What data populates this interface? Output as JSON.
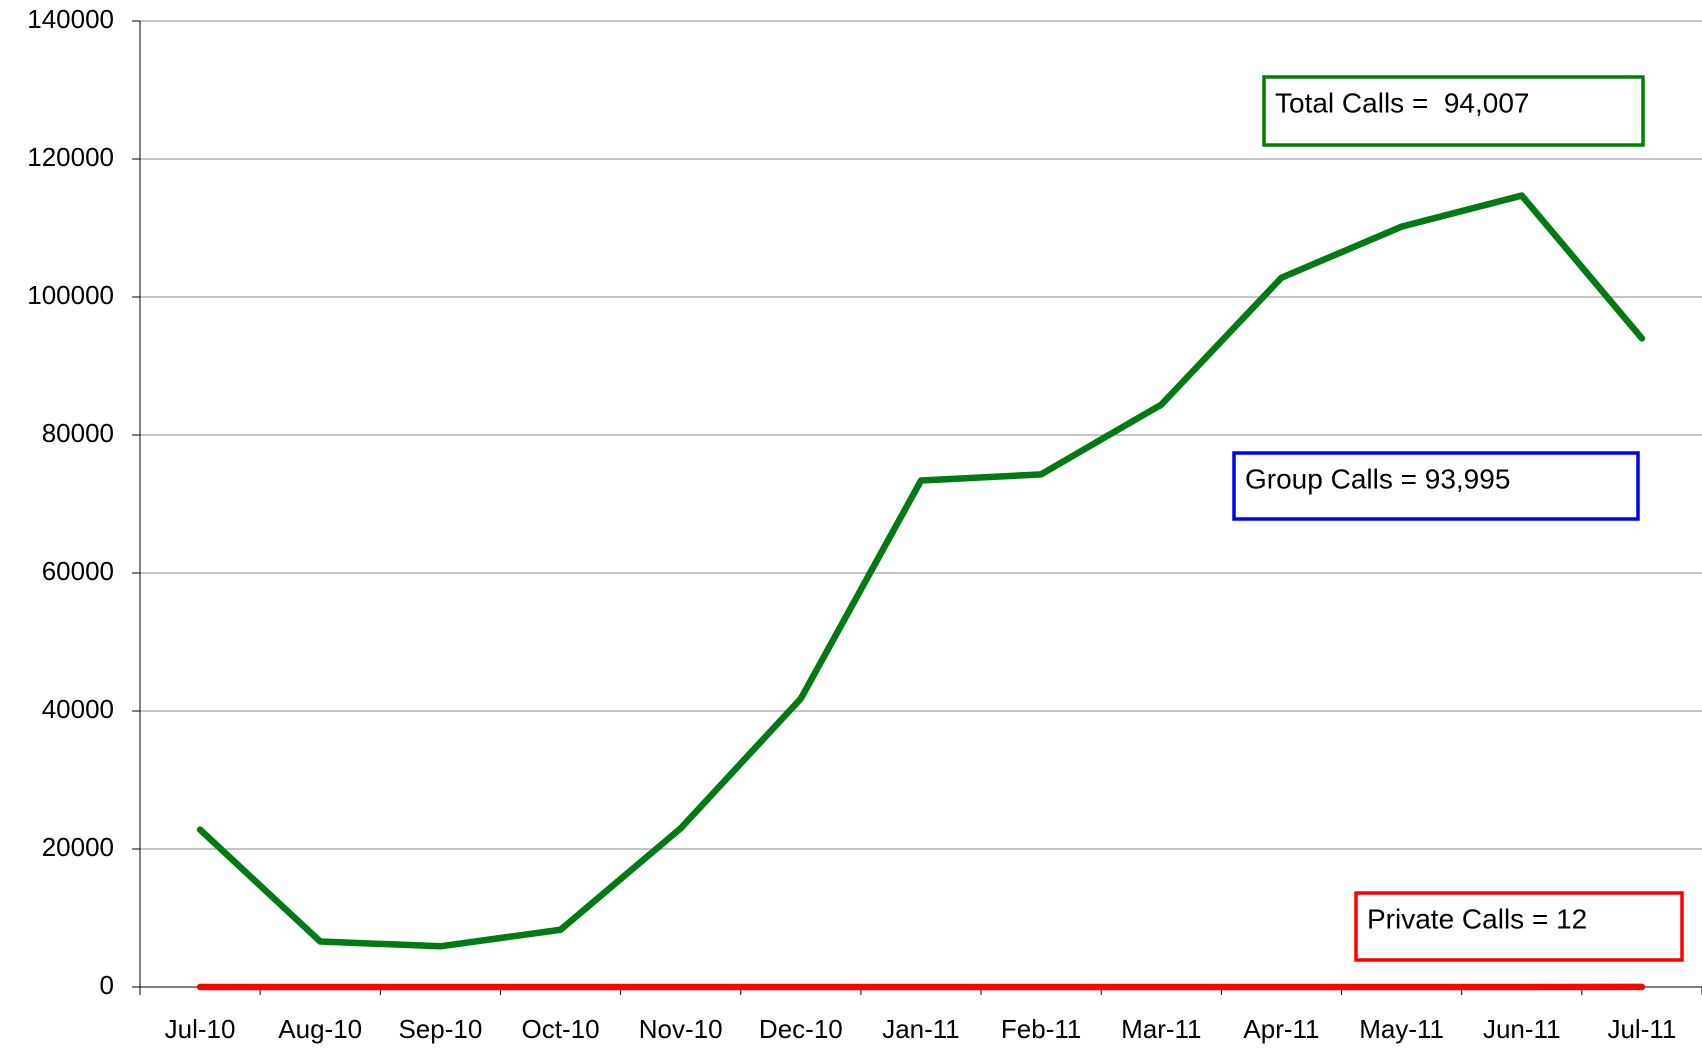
{
  "chart_data": {
    "type": "line",
    "categories": [
      "Jul-10",
      "Aug-10",
      "Sep-10",
      "Oct-10",
      "Nov-10",
      "Dec-10",
      "Jan-11",
      "Feb-11",
      "Mar-11",
      "Apr-11",
      "May-11",
      "Jun-11",
      "Jul-11"
    ],
    "series": [
      {
        "color": "#007a12",
        "values": [
          22800,
          6600,
          5900,
          8300,
          23000,
          41800,
          73400,
          74300,
          84400,
          102800,
          110200,
          114700,
          94007
        ]
      },
      {
        "color": "#ff0000",
        "values": [
          0,
          0,
          0,
          0,
          0,
          0,
          0,
          0,
          0,
          0,
          0,
          0,
          12
        ]
      }
    ],
    "ylim": [
      0,
      140000
    ],
    "yticks": [
      0,
      20000,
      40000,
      60000,
      80000,
      100000,
      120000,
      140000
    ],
    "grid": true,
    "annotations": [
      {
        "text": "Total Calls =  94,007",
        "color": "#008000"
      },
      {
        "text": "Group Calls = 93,995",
        "color": "#0000ff"
      },
      {
        "text": "Private Calls = 12",
        "color": "#ff0000"
      }
    ]
  }
}
